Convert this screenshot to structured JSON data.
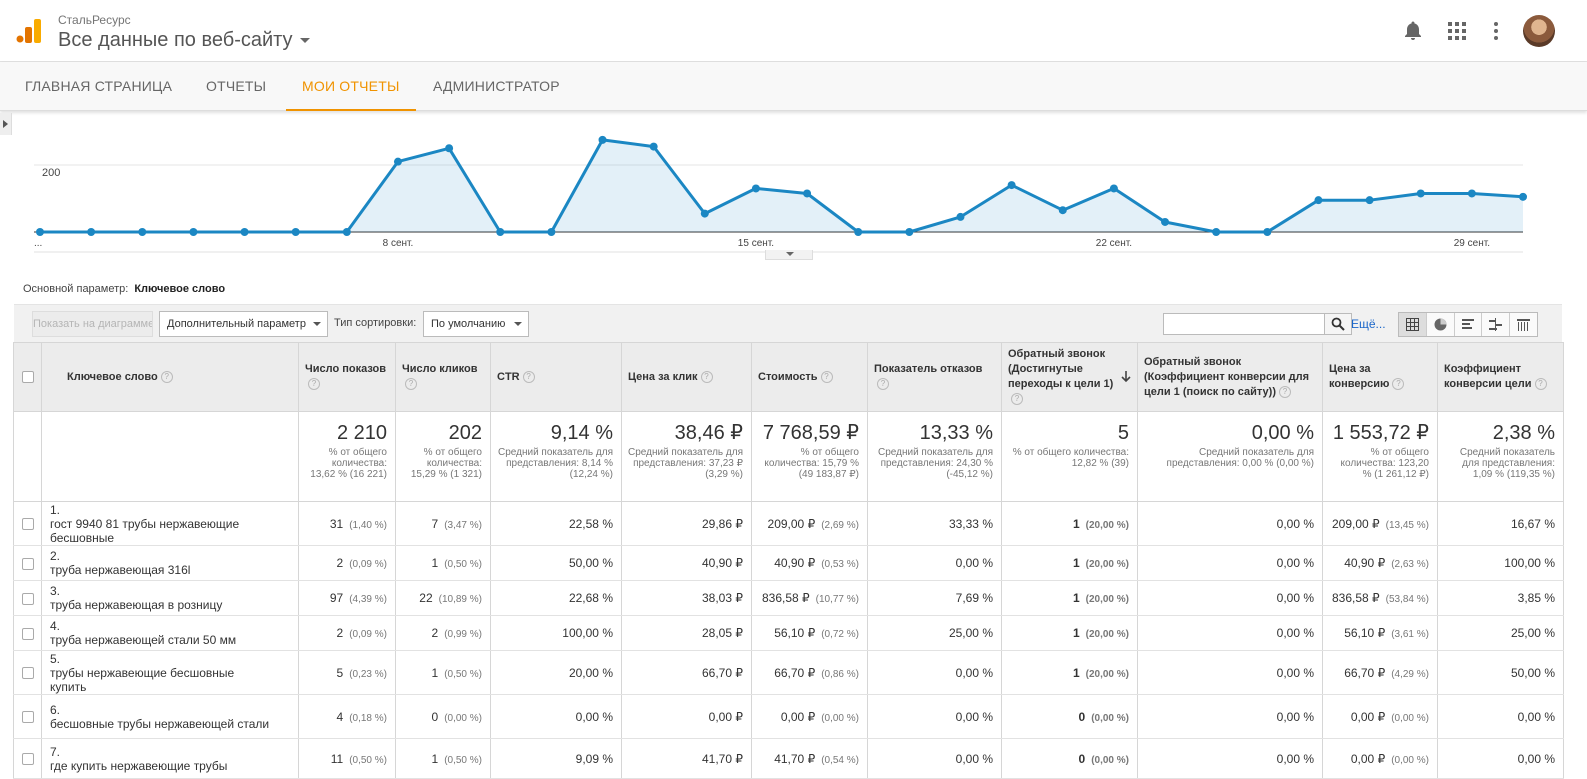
{
  "header": {
    "account": "СтальРесурс",
    "property": "Все данные по веб-сайту"
  },
  "nav": {
    "tabs": [
      {
        "label": "ГЛАВНАЯ СТРАНИЦА",
        "active": false
      },
      {
        "label": "ОТЧЕТЫ",
        "active": false
      },
      {
        "label": "МОИ ОТЧЕТЫ",
        "active": true
      },
      {
        "label": "АДМИНИСТРАТОР",
        "active": false
      }
    ]
  },
  "colors": {
    "accent": "#f09300",
    "line": "#1b87c3",
    "link": "#1a66c9"
  },
  "chart_data": {
    "type": "area",
    "y_tick_label": "200",
    "y_tick_value": 200,
    "ylim": [
      0,
      300
    ],
    "x_start_label": "...",
    "x_tick_labels": [
      "8 сент.",
      "15 сент.",
      "22 сент.",
      "29 сент."
    ],
    "x_tick_index": [
      7,
      14,
      21,
      28
    ],
    "values": [
      0,
      0,
      0,
      0,
      0,
      0,
      0,
      210,
      250,
      0,
      0,
      275,
      255,
      55,
      130,
      115,
      0,
      0,
      45,
      140,
      65,
      130,
      30,
      0,
      0,
      95,
      95,
      115,
      115,
      105
    ],
    "grid": true
  },
  "dimension": {
    "label": "Основной параметр:",
    "value": "Ключевое слово"
  },
  "toolbar": {
    "plot_rows": "Показать на диаграмме",
    "secondary_dim": "Дополнительный параметр",
    "sort_label": "Тип сортировки:",
    "sort_value": "По умолчанию",
    "more": "Ещё..."
  },
  "table": {
    "headers": {
      "keyword": "Ключевое слово",
      "impressions": "Число показов",
      "clicks": "Число кликов",
      "ctr": "CTR",
      "cpc": "Цена за клик",
      "cost": "Стоимость",
      "bounce": "Показатель отказов",
      "goal1": "Обратный звонок (Достигнутые переходы к цели 1)",
      "goal1_conv": "Обратный звонок (Коэффициент конверсии для цели 1 (поиск по сайту))",
      "cpa": "Цена за конверсию",
      "conv_rate": "Коэффициент конверсии цели"
    },
    "totals": {
      "impressions": {
        "value": "2 210",
        "sub": "% от общего количества: 13,62 % (16 221)"
      },
      "clicks": {
        "value": "202",
        "sub": "% от общего количества: 15,29 % (1 321)"
      },
      "ctr": {
        "value": "9,14 %",
        "sub": "Средний показатель для представления: 8,14 % (12,24 %)"
      },
      "cpc": {
        "value": "38,46 ₽",
        "sub": "Средний показатель для представления: 37,23 ₽ (3,29 %)"
      },
      "cost": {
        "value": "7 768,59 ₽",
        "sub": "% от общего количества: 15,79 % (49 183,87 ₽)"
      },
      "bounce": {
        "value": "13,33 %",
        "sub": "Средний показатель для представления: 24,30 % (-45,12 %)"
      },
      "goal1": {
        "value": "5",
        "sub": "% от общего количества: 12,82 % (39)"
      },
      "goal1_conv": {
        "value": "0,00 %",
        "sub": "Средний показатель для представления: 0,00 % (0,00 %)"
      },
      "cpa": {
        "value": "1 553,72 ₽",
        "sub": "% от общего количества: 123,20 % (1 261,12 ₽)"
      },
      "conv_rate": {
        "value": "2,38 %",
        "sub": "Средний показатель для представления: 1,09 % (119,35 %)"
      }
    },
    "rows": [
      {
        "n": "1.",
        "kw": "гост 9940 81 трубы нержавеющие бесшовные",
        "imp": "31",
        "imp_p": "(1,40 %)",
        "clk": "7",
        "clk_p": "(3,47 %)",
        "ctr": "22,58 %",
        "cpc": "29,86 ₽",
        "cost": "209,00 ₽",
        "cost_p": "(2,69 %)",
        "bounce": "33,33 %",
        "g1": "1",
        "g1_p": "(20,00 %)",
        "g1c": "0,00 %",
        "cpa": "209,00 ₽",
        "cpa_p": "(13,45 %)",
        "cr": "16,67 %"
      },
      {
        "n": "2.",
        "kw": "труба нержавеющая 316l",
        "imp": "2",
        "imp_p": "(0,09 %)",
        "clk": "1",
        "clk_p": "(0,50 %)",
        "ctr": "50,00 %",
        "cpc": "40,90 ₽",
        "cost": "40,90 ₽",
        "cost_p": "(0,53 %)",
        "bounce": "0,00 %",
        "g1": "1",
        "g1_p": "(20,00 %)",
        "g1c": "0,00 %",
        "cpa": "40,90 ₽",
        "cpa_p": "(2,63 %)",
        "cr": "100,00 %"
      },
      {
        "n": "3.",
        "kw": "труба нержавеющая в розницу",
        "imp": "97",
        "imp_p": "(4,39 %)",
        "clk": "22",
        "clk_p": "(10,89 %)",
        "ctr": "22,68 %",
        "cpc": "38,03 ₽",
        "cost": "836,58 ₽",
        "cost_p": "(10,77 %)",
        "bounce": "7,69 %",
        "g1": "1",
        "g1_p": "(20,00 %)",
        "g1c": "0,00 %",
        "cpa": "836,58 ₽",
        "cpa_p": "(53,84 %)",
        "cr": "3,85 %"
      },
      {
        "n": "4.",
        "kw": "труба нержавеющей стали 50 мм",
        "imp": "2",
        "imp_p": "(0,09 %)",
        "clk": "2",
        "clk_p": "(0,99 %)",
        "ctr": "100,00 %",
        "cpc": "28,05 ₽",
        "cost": "56,10 ₽",
        "cost_p": "(0,72 %)",
        "bounce": "25,00 %",
        "g1": "1",
        "g1_p": "(20,00 %)",
        "g1c": "0,00 %",
        "cpa": "56,10 ₽",
        "cpa_p": "(3,61 %)",
        "cr": "25,00 %"
      },
      {
        "n": "5.",
        "kw": "трубы нержавеющие бесшовные купить",
        "imp": "5",
        "imp_p": "(0,23 %)",
        "clk": "1",
        "clk_p": "(0,50 %)",
        "ctr": "20,00 %",
        "cpc": "66,70 ₽",
        "cost": "66,70 ₽",
        "cost_p": "(0,86 %)",
        "bounce": "0,00 %",
        "g1": "1",
        "g1_p": "(20,00 %)",
        "g1c": "0,00 %",
        "cpa": "66,70 ₽",
        "cpa_p": "(4,29 %)",
        "cr": "50,00 %"
      },
      {
        "n": "6.",
        "kw": "бесшовные трубы нержавеющей стали",
        "imp": "4",
        "imp_p": "(0,18 %)",
        "clk": "0",
        "clk_p": "(0,00 %)",
        "ctr": "0,00 %",
        "cpc": "0,00 ₽",
        "cost": "0,00 ₽",
        "cost_p": "(0,00 %)",
        "bounce": "0,00 %",
        "g1": "0",
        "g1_p": "(0,00 %)",
        "g1c": "0,00 %",
        "cpa": "0,00 ₽",
        "cpa_p": "(0,00 %)",
        "cr": "0,00 %"
      },
      {
        "n": "7.",
        "kw": "где купить нержавеющие трубы",
        "imp": "11",
        "imp_p": "(0,50 %)",
        "clk": "1",
        "clk_p": "(0,50 %)",
        "ctr": "9,09 %",
        "cpc": "41,70 ₽",
        "cost": "41,70 ₽",
        "cost_p": "(0,54 %)",
        "bounce": "0,00 %",
        "g1": "0",
        "g1_p": "(0,00 %)",
        "g1c": "0,00 %",
        "cpa": "0,00 ₽",
        "cpa_p": "(0,00 %)",
        "cr": "0,00 %"
      }
    ]
  }
}
